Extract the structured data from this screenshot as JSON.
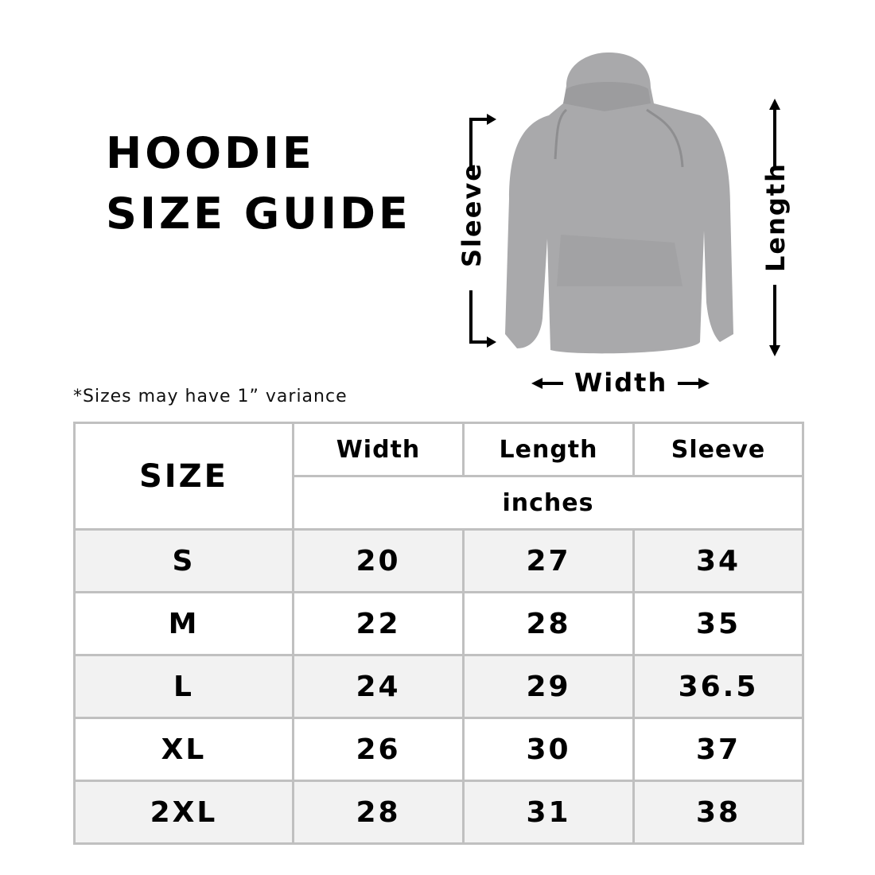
{
  "title": {
    "line1": "HOODIE",
    "line2": "SIZE GUIDE"
  },
  "note": "*Sizes may have 1” variance",
  "diagram": {
    "sleeve": "Sleeve",
    "length": "Length",
    "width": "Width",
    "garment_color": "#a9a9ab"
  },
  "table": {
    "size_header": "SIZE",
    "columns": [
      "Width",
      "Length",
      "Sleeve"
    ],
    "unit": "inches",
    "rows": [
      {
        "size": "S",
        "width": "20",
        "length": "27",
        "sleeve": "34"
      },
      {
        "size": "M",
        "width": "22",
        "length": "28",
        "sleeve": "35"
      },
      {
        "size": "L",
        "width": "24",
        "length": "29",
        "sleeve": "36.5"
      },
      {
        "size": "XL",
        "width": "26",
        "length": "30",
        "sleeve": "37"
      },
      {
        "size": "2XL",
        "width": "28",
        "length": "31",
        "sleeve": "38"
      }
    ],
    "stripe_color": "#f2f2f2",
    "border_color": "#c0c0c0"
  }
}
